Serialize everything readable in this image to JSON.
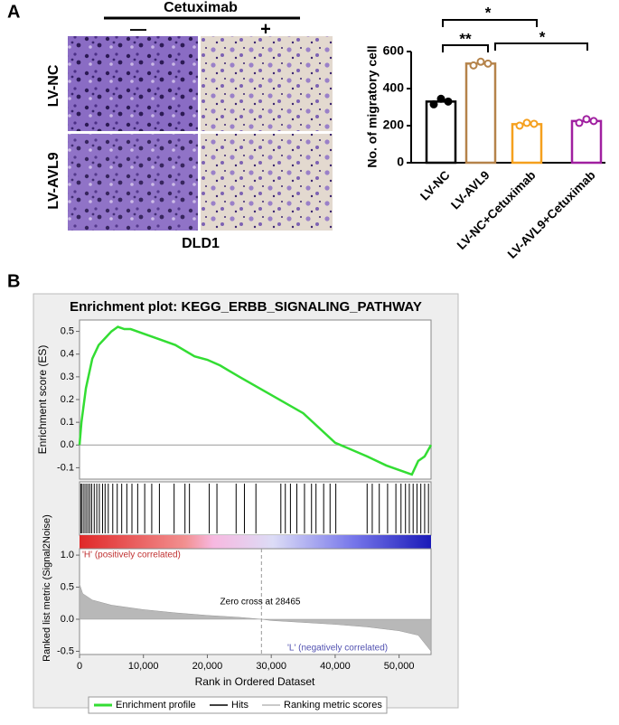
{
  "labels": {
    "panel_a": "A",
    "panel_b": "B",
    "treatment": "Cetuximab",
    "minus": "—",
    "plus": "+",
    "row_1": "LV-NC",
    "row_2": "LV-AVL9",
    "cell_line": "DLD1"
  },
  "chart_data": [
    {
      "type": "bar",
      "categories": [
        "LV-NC",
        "LV-AVL9",
        "LV-NC+Cetuximab",
        "LV-AVL9+Cetuximab"
      ],
      "values": [
        330,
        535,
        208,
        225
      ],
      "points": [
        [
          315,
          345,
          330
        ],
        [
          525,
          545,
          535
        ],
        [
          200,
          215,
          210
        ],
        [
          215,
          235,
          225
        ]
      ],
      "colors": [
        "#000000",
        "#b5834a",
        "#f5a01e",
        "#a020a0"
      ],
      "ylabel": "No. of migratory cell",
      "ylim": [
        0,
        600
      ],
      "yticks": [
        0,
        200,
        400,
        600
      ],
      "significance": [
        "*",
        "**",
        "*"
      ]
    },
    {
      "type": "line",
      "title": "Enrichment plot: KEGG_ERBB_SIGNALING_PATHWAY",
      "ylabel": "Enrichment score (ES)",
      "x": [
        0,
        300,
        1000,
        2000,
        3000,
        4000,
        5000,
        6000,
        7000,
        8000,
        10000,
        12000,
        15000,
        18000,
        20000,
        22000,
        25000,
        30000,
        35000,
        40000,
        45000,
        48000,
        51000,
        52000,
        53000,
        54000,
        55000
      ],
      "series": [
        {
          "name": "Enrichment profile",
          "color": "#33dd33",
          "values": [
            0,
            0.1,
            0.25,
            0.38,
            0.44,
            0.47,
            0.5,
            0.52,
            0.51,
            0.51,
            0.49,
            0.47,
            0.44,
            0.39,
            0.375,
            0.35,
            0.3,
            0.22,
            0.14,
            0.01,
            -0.05,
            -0.09,
            -0.12,
            -0.13,
            -0.07,
            -0.05,
            0.0
          ]
        }
      ],
      "hits": {
        "name": "Hits",
        "color": "#000000",
        "values": [
          200,
          400,
          700,
          1000,
          1300,
          1600,
          1900,
          2300,
          2700,
          3100,
          3600,
          4000,
          4500,
          5200,
          5900,
          6600,
          7400,
          8200,
          9100,
          10200,
          11300,
          12500,
          14800,
          16500,
          17200,
          20300,
          21500,
          24500,
          25800,
          27600,
          31500,
          32200,
          33000,
          34000,
          35200,
          36300,
          37000,
          38200,
          39200,
          40100,
          45000,
          45800,
          46900,
          48200,
          49500,
          50300,
          51000,
          51600,
          52200,
          52800,
          53400,
          54000,
          54600
        ]
      },
      "xlim": [
        0,
        55000
      ],
      "ylim": [
        -0.15,
        0.55
      ],
      "yticks": [
        -0.1,
        {
          "value": 0,
          "label": "0.0"
        },
        0.1,
        0.2,
        0.3,
        0.4,
        0.5
      ]
    },
    {
      "type": "area",
      "ylabel": "Ranked list metric (Signal2Noise)",
      "xlabel": "Rank in Ordered Dataset",
      "x": [
        0,
        500,
        2000,
        5000,
        10000,
        15000,
        20000,
        25000,
        28465,
        30000,
        35000,
        40000,
        45000,
        50000,
        53000,
        55000
      ],
      "series": [
        {
          "name": "Ranking metric scores",
          "color": "#b8b8b8",
          "values": [
            0.55,
            0.4,
            0.3,
            0.22,
            0.15,
            0.1,
            0.06,
            0.03,
            0,
            -0.02,
            -0.05,
            -0.08,
            -0.12,
            -0.18,
            -0.25,
            -0.5
          ]
        }
      ],
      "xlim": [
        0,
        55000
      ],
      "ylim": [
        -0.55,
        1.1
      ],
      "xticks": [
        0,
        {
          "value": 10000,
          "label": "10,000"
        },
        {
          "value": 20000,
          "label": "20,000"
        },
        {
          "value": 30000,
          "label": "30,000"
        },
        {
          "value": 40000,
          "label": "40,000"
        },
        {
          "value": 50000,
          "label": "50,000"
        }
      ],
      "yticks": [
        -0.5,
        {
          "value": 0,
          "label": "0.0"
        },
        0.5,
        {
          "value": 1,
          "label": "1.0"
        }
      ],
      "annotations": [
        "'H' (positively correlated)",
        "Zero cross at 28465",
        "'L' (negatively correlated)"
      ]
    }
  ]
}
